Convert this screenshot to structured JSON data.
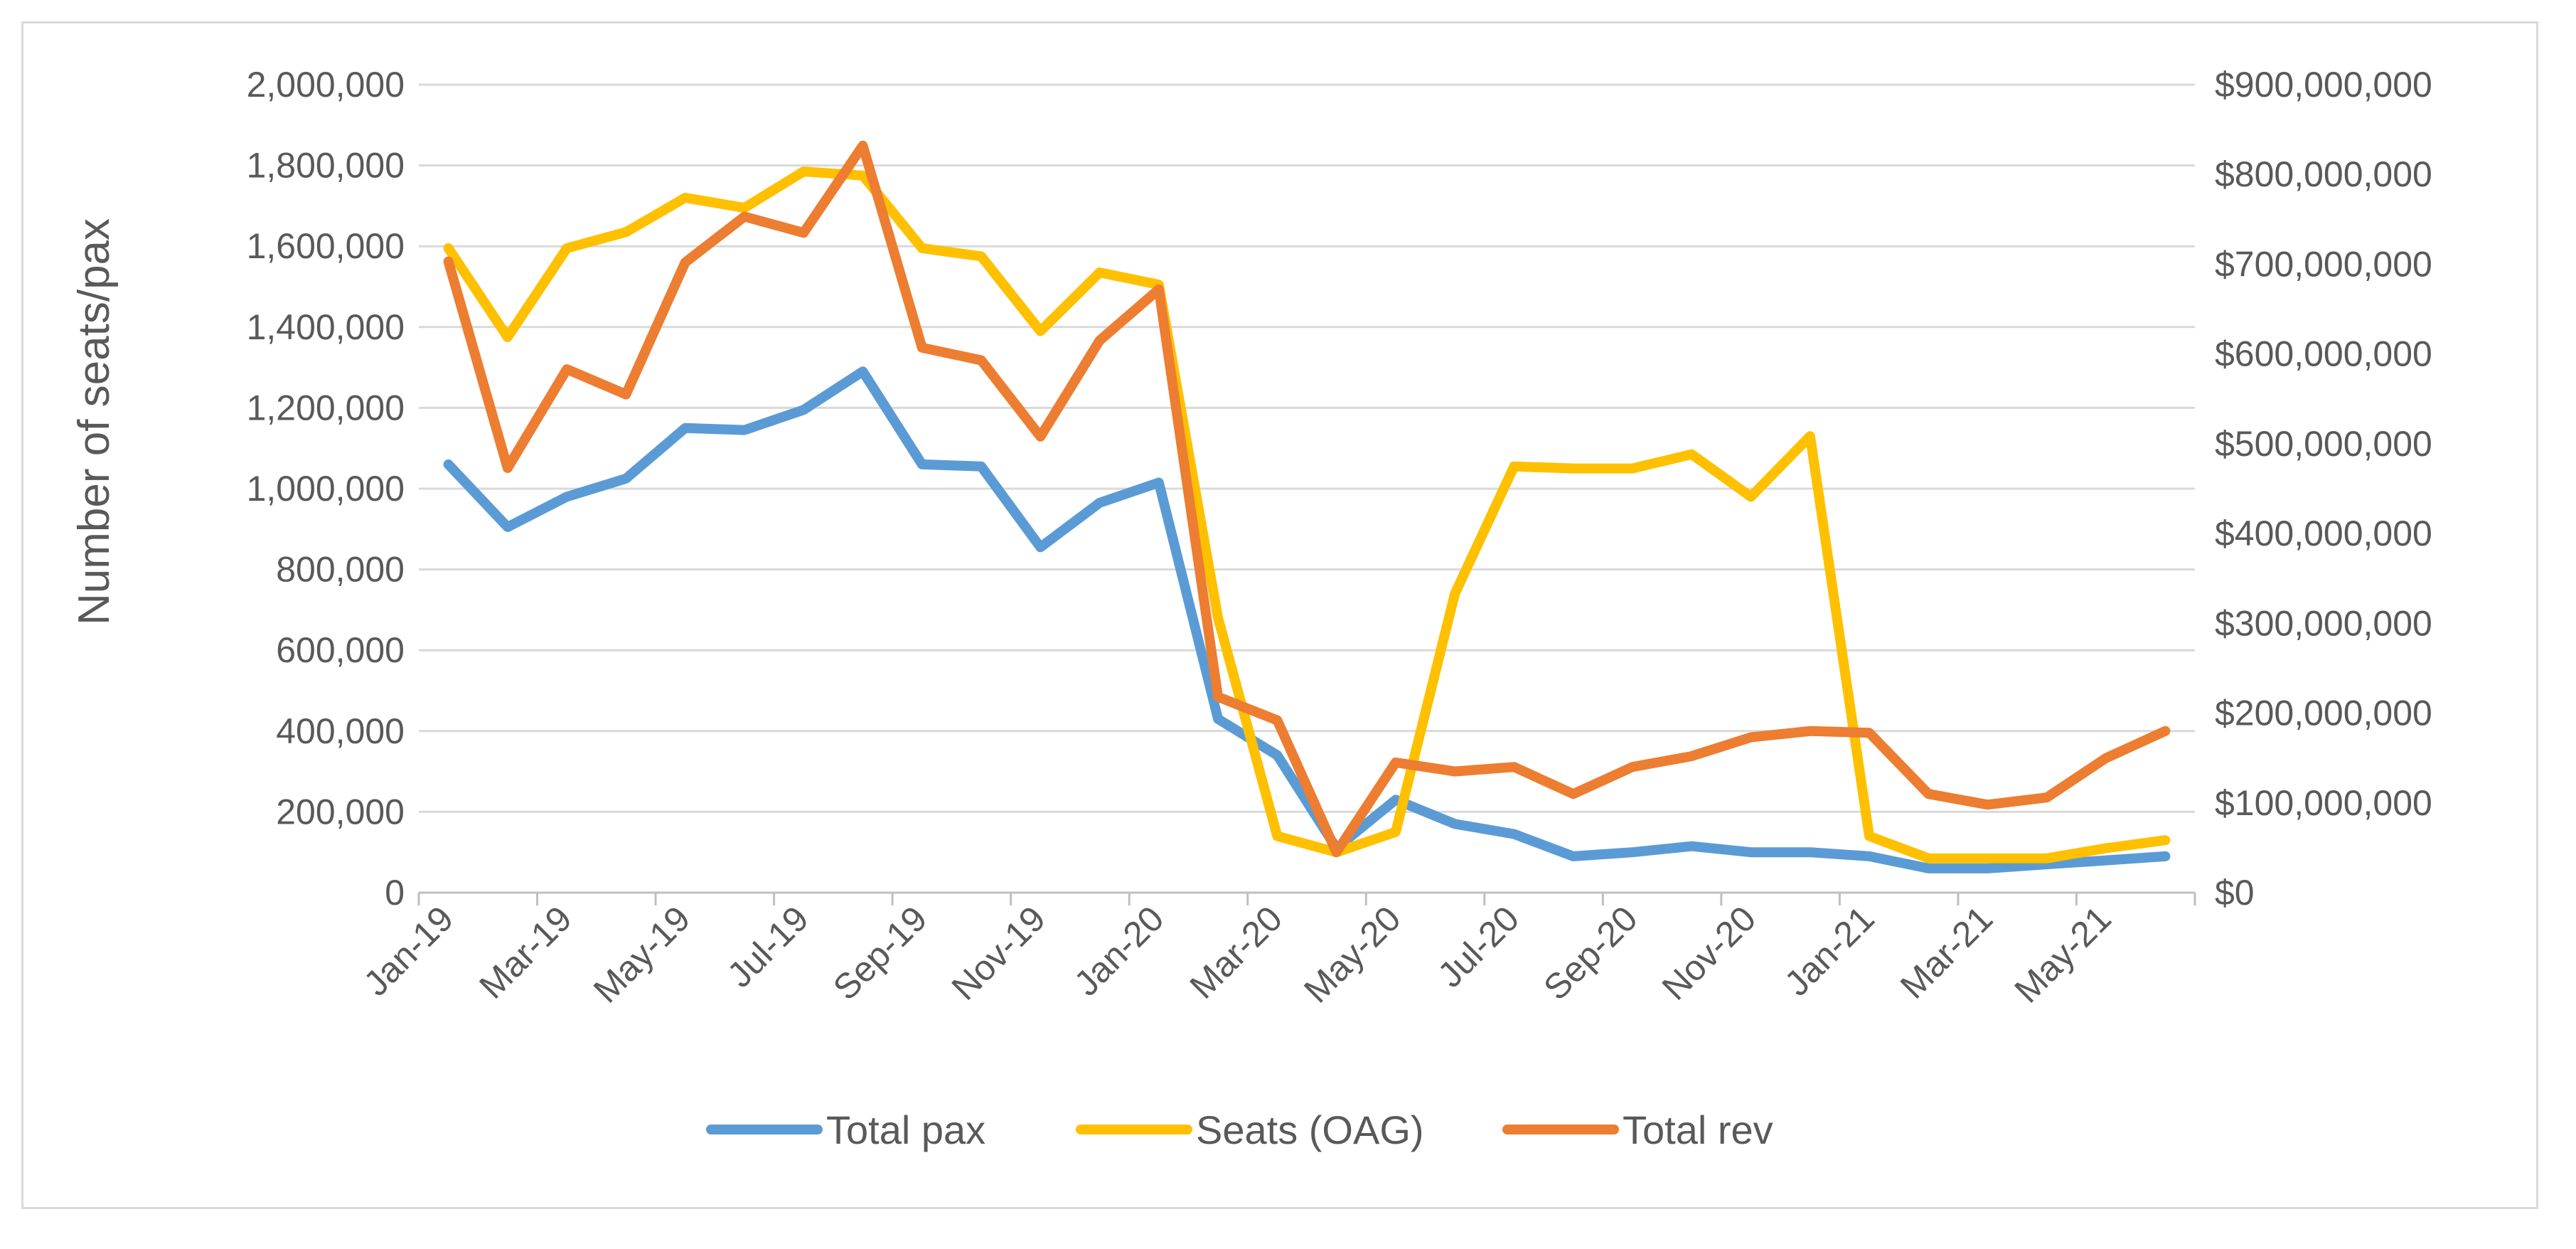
{
  "chart_data": {
    "type": "line",
    "title": "",
    "xlabel": "",
    "ylabel": "Number of seats/pax",
    "y2label": "",
    "categories": [
      "Jan-19",
      "Feb-19",
      "Mar-19",
      "Apr-19",
      "May-19",
      "Jun-19",
      "Jul-19",
      "Aug-19",
      "Sep-19",
      "Oct-19",
      "Nov-19",
      "Dec-19",
      "Jan-20",
      "Feb-20",
      "Mar-20",
      "Apr-20",
      "May-20",
      "Jun-20",
      "Jul-20",
      "Aug-20",
      "Sep-20",
      "Oct-20",
      "Nov-20",
      "Dec-20",
      "Jan-21",
      "Feb-21",
      "Mar-21",
      "Apr-21",
      "May-21",
      "Jun-21"
    ],
    "x_tick_labels": [
      "Jan-19",
      "Mar-19",
      "May-19",
      "Jul-19",
      "Sep-19",
      "Nov-19",
      "Jan-20",
      "Mar-20",
      "May-20",
      "Jul-20",
      "Sep-20",
      "Nov-20",
      "Jan-21",
      "Mar-21",
      "May-21"
    ],
    "ylim": [
      0,
      2000000
    ],
    "y2lim": [
      0,
      900000000
    ],
    "y_tick_labels": [
      "0",
      "200,000",
      "400,000",
      "600,000",
      "800,000",
      "1,000,000",
      "1,200,000",
      "1,400,000",
      "1,600,000",
      "1,800,000",
      "2,000,000"
    ],
    "y2_tick_labels": [
      "$0",
      "$100,000,000",
      "$200,000,000",
      "$300,000,000",
      "$400,000,000",
      "$500,000,000",
      "$600,000,000",
      "$700,000,000",
      "$800,000,000",
      "$900,000,000"
    ],
    "grid": true,
    "legend_position": "bottom",
    "series": [
      {
        "name": "Total pax",
        "axis": "left",
        "color": "#5b9bd5",
        "values": [
          1060000,
          905000,
          980000,
          1025000,
          1150000,
          1145000,
          1195000,
          1290000,
          1060000,
          1055000,
          855000,
          965000,
          1015000,
          430000,
          340000,
          110000,
          230000,
          170000,
          145000,
          90000,
          100000,
          115000,
          100000,
          100000,
          90000,
          60000,
          60000,
          70000,
          80000,
          90000
        ]
      },
      {
        "name": "Seats (OAG)",
        "axis": "left",
        "color": "#ffc000",
        "values": [
          1595000,
          1375000,
          1595000,
          1635000,
          1720000,
          1695000,
          1785000,
          1775000,
          1595000,
          1575000,
          1390000,
          1535000,
          1505000,
          680000,
          140000,
          100000,
          150000,
          740000,
          1055000,
          1050000,
          1050000,
          1085000,
          980000,
          1130000,
          140000,
          85000,
          85000,
          85000,
          110000,
          130000
        ]
      },
      {
        "name": "Total rev",
        "axis": "right",
        "color": "#ed7d31",
        "values": [
          703000000,
          473000000,
          583000000,
          555000000,
          702000000,
          753000000,
          735000000,
          832000000,
          607000000,
          593000000,
          508000000,
          615000000,
          672000000,
          218000000,
          192000000,
          45000000,
          145000000,
          135000000,
          140000000,
          110000000,
          140000000,
          152000000,
          173000000,
          180000000,
          178000000,
          110000000,
          98000000,
          106000000,
          150000000,
          180000000
        ]
      }
    ]
  }
}
